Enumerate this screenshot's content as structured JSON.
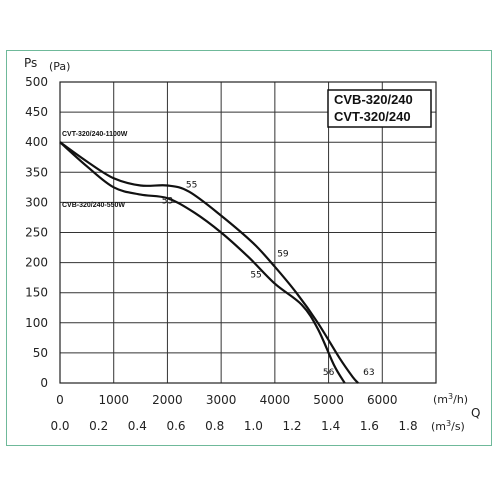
{
  "chart_data": {
    "type": "line",
    "y_axis": {
      "label": "Ps",
      "unit": "(Pa)",
      "ylim": [
        0,
        500
      ],
      "ticks": [
        "0",
        "50",
        "100",
        "150",
        "200",
        "250",
        "300",
        "350",
        "400",
        "450",
        "500"
      ]
    },
    "x_axis": {
      "label": "Q",
      "unit_primary": "(m3/h)",
      "unit_secondary": "(m3/s)",
      "xlim": [
        0,
        7000
      ],
      "ticks_primary": [
        "0",
        "1000",
        "2000",
        "3000",
        "4000",
        "5000",
        "6000"
      ],
      "ticks_secondary": [
        "0.0",
        "0.2",
        "0.4",
        "0.6",
        "0.8",
        "1.0",
        "1.2",
        "1.4",
        "1.6",
        "1.8"
      ]
    },
    "model_box": [
      "CVB-320/240",
      "CVT-320/240"
    ],
    "grid": true,
    "series": [
      {
        "name": "CVT-320/240-1100W",
        "x": [
          0,
          500,
          1000,
          1500,
          2000,
          2400,
          3000,
          3600,
          4000,
          4400,
          4800,
          5200,
          5450,
          5550
        ],
        "y": [
          400,
          368,
          340,
          328,
          328,
          318,
          278,
          232,
          193,
          150,
          100,
          42,
          10,
          0
        ]
      },
      {
        "name": "CVB-320/240-550W",
        "x": [
          0,
          500,
          1000,
          1500,
          2000,
          2500,
          3000,
          3500,
          4000,
          4500,
          4800,
          5100,
          5300
        ],
        "y": [
          400,
          360,
          325,
          313,
          307,
          283,
          250,
          210,
          165,
          130,
          90,
          30,
          0
        ]
      }
    ],
    "annotations": [
      {
        "text": "55",
        "x": 2450,
        "y": 325
      },
      {
        "text": "53",
        "x": 2000,
        "y": 298
      },
      {
        "text": "59",
        "x": 4150,
        "y": 210
      },
      {
        "text": "55",
        "x": 3650,
        "y": 175
      },
      {
        "text": "56",
        "x": 5000,
        "y": 13
      },
      {
        "text": "63",
        "x": 5750,
        "y": 13
      }
    ]
  }
}
